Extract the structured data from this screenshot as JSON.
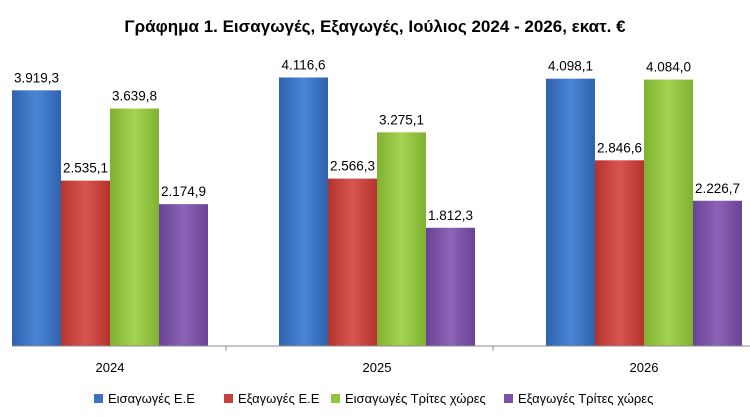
{
  "chart_data": {
    "type": "bar",
    "title": "Γράφημα 1. Εισαγωγές, Εξαγωγές, Ιούλιος 2024 - 2026, εκατ. €",
    "categories": [
      "2024",
      "2025",
      "2026"
    ],
    "series": [
      {
        "name": "Εισαγωγές Ε.Ε",
        "color": "#3b72c2",
        "values": [
          3919.3,
          4116.6,
          4098.1
        ],
        "labels": [
          "3.919,3",
          "4.116,6",
          "4.098,1"
        ]
      },
      {
        "name": "Εξαγωγές  Ε.Ε",
        "color": "#c8403b",
        "values": [
          2535.1,
          2566.3,
          2846.6
        ],
        "labels": [
          "2.535,1",
          "2.566,3",
          "2.846,6"
        ]
      },
      {
        "name": "Εισαγωγές Τρίτες χώρες",
        "color": "#92c43e",
        "values": [
          3639.8,
          3275.1,
          4084.0
        ],
        "labels": [
          "3.639,8",
          "3.275,1",
          "4.084,0"
        ]
      },
      {
        "name": "Εξαγωγές Τρίτες χώρες",
        "color": "#7b52a5",
        "values": [
          2174.9,
          1812.3,
          2226.7
        ],
        "labels": [
          "2.174,9",
          "1.812,3",
          "2.226,7"
        ]
      }
    ],
    "ylim": [
      0,
      4300
    ],
    "grid": false,
    "legend_position": "bottom"
  }
}
